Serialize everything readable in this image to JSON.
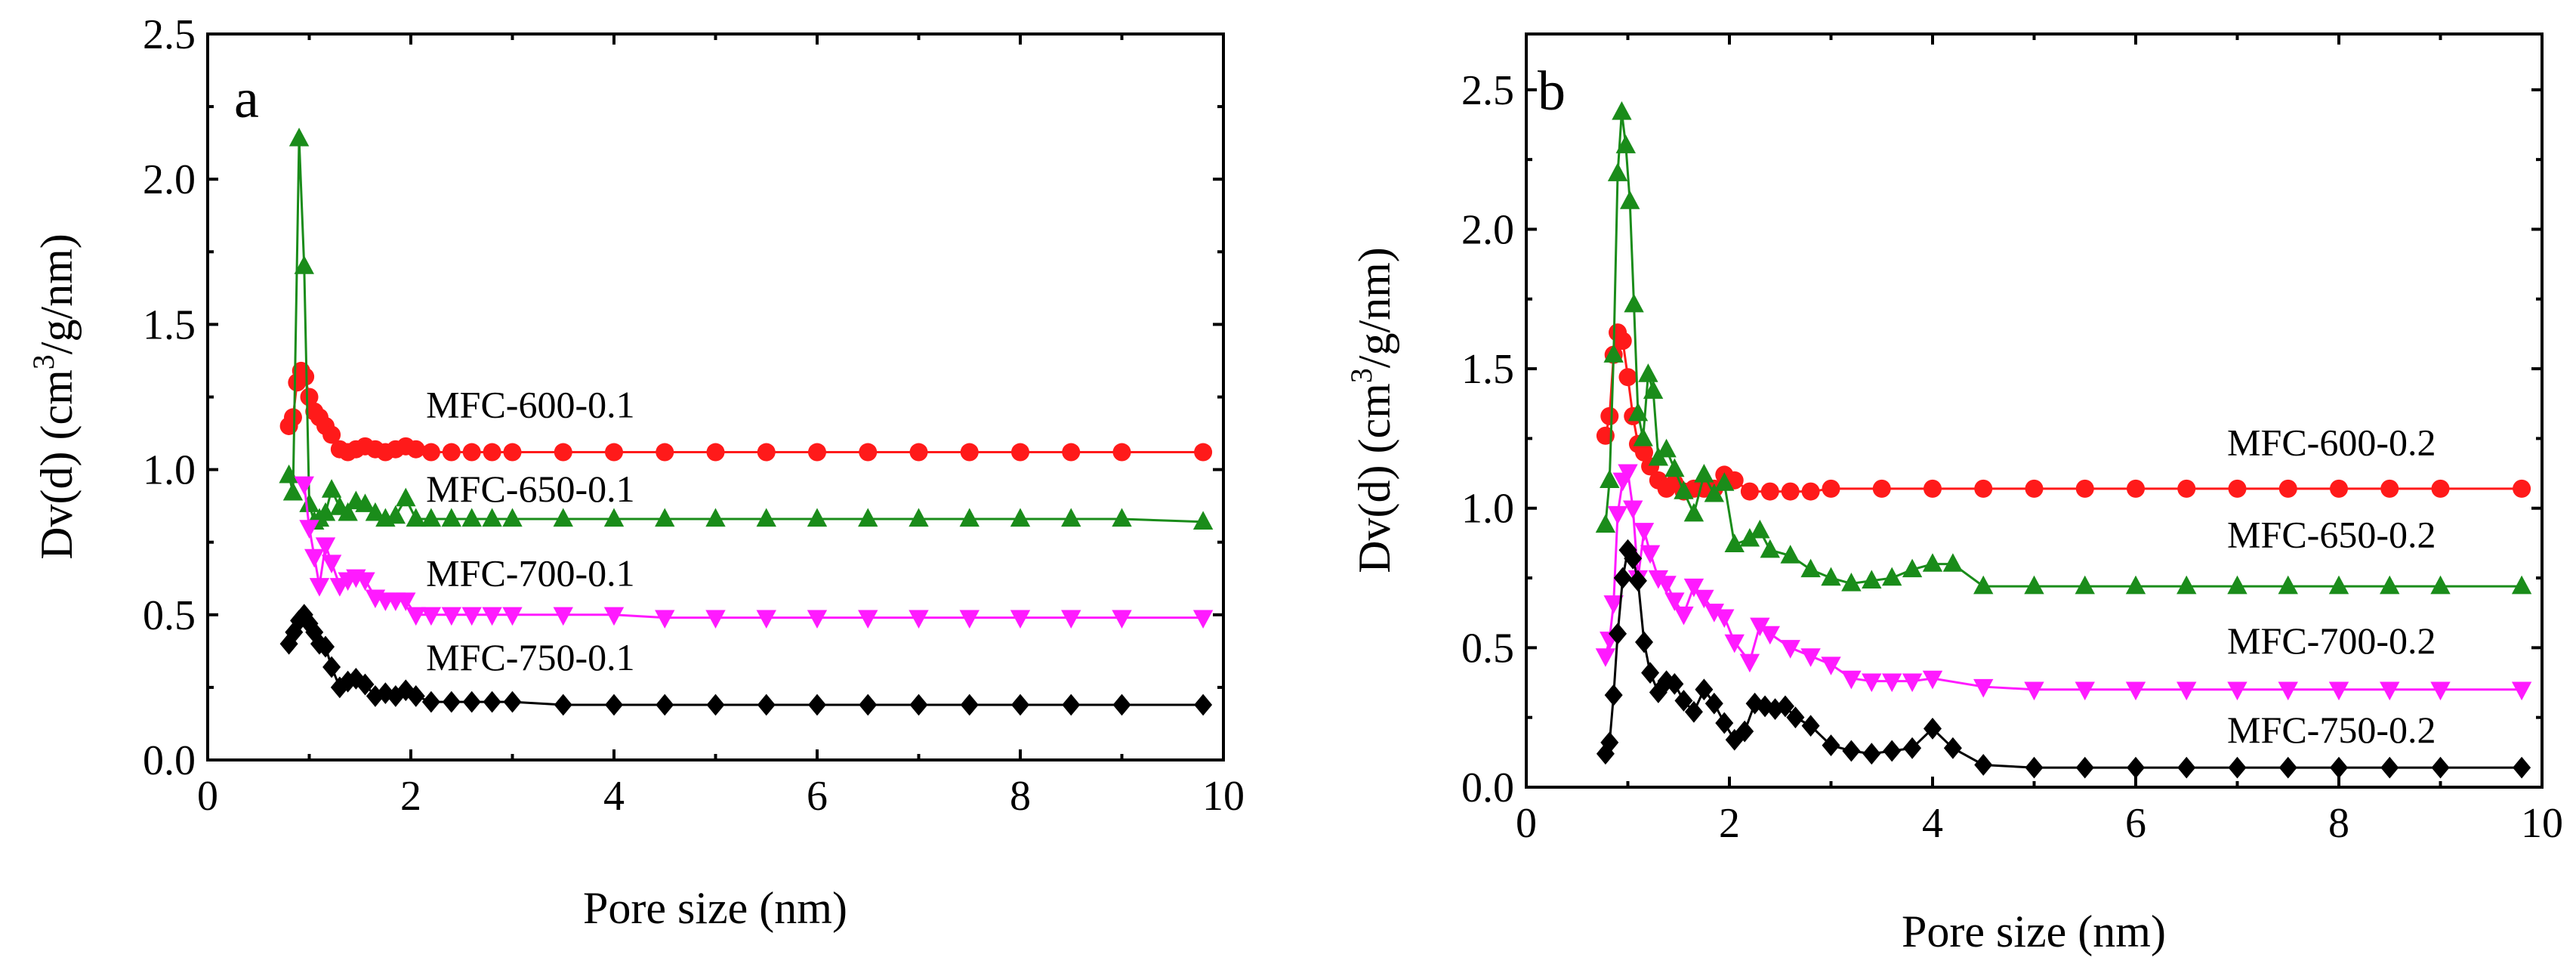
{
  "chart_data": [
    {
      "type": "scatter",
      "panel_label": "a",
      "xlabel": "Pore size (nm)",
      "ylabel": "Dv(d) (cm",
      "ylabel_sup": "3",
      "ylabel_rest": "/g/nm)",
      "xlim": [
        0,
        10
      ],
      "ylim": [
        0,
        2.5
      ],
      "xticks": [
        0,
        2,
        4,
        6,
        8,
        10
      ],
      "xtick_labels": [
        "0",
        "2",
        "4",
        "6",
        "8",
        "10"
      ],
      "yticks": [
        0.0,
        0.5,
        1.0,
        1.5,
        2.0,
        2.5
      ],
      "ytick_labels": [
        "0.0",
        "0.5",
        "1.0",
        "1.5",
        "2.0",
        "2.5"
      ],
      "series": [
        {
          "name": "MFC-600-0.1",
          "color": "#ff1a1a",
          "marker": "circle",
          "label_at": [
            2.15,
            1.18
          ],
          "x": [
            0.8,
            0.84,
            0.88,
            0.92,
            0.96,
            1.0,
            1.05,
            1.1,
            1.16,
            1.22,
            1.3,
            1.38,
            1.46,
            1.55,
            1.65,
            1.75,
            1.85,
            1.95,
            2.05,
            2.2,
            2.4,
            2.6,
            2.8,
            3.0,
            3.5,
            4.0,
            4.5,
            5.0,
            5.5,
            6.0,
            6.5,
            7.0,
            7.5,
            8.0,
            8.5,
            9.0,
            9.8
          ],
          "y": [
            1.15,
            1.18,
            1.3,
            1.34,
            1.32,
            1.25,
            1.2,
            1.18,
            1.15,
            1.12,
            1.07,
            1.06,
            1.07,
            1.08,
            1.07,
            1.06,
            1.07,
            1.08,
            1.07,
            1.06,
            1.06,
            1.06,
            1.06,
            1.06,
            1.06,
            1.06,
            1.06,
            1.06,
            1.06,
            1.06,
            1.06,
            1.06,
            1.06,
            1.06,
            1.06,
            1.06,
            1.06
          ]
        },
        {
          "name": "MFC-650-0.1",
          "color": "#1a8c1a",
          "marker": "triangle-up",
          "label_at": [
            2.15,
            0.89
          ],
          "x": [
            0.8,
            0.84,
            0.9,
            0.95,
            1.0,
            1.05,
            1.1,
            1.16,
            1.22,
            1.3,
            1.38,
            1.46,
            1.55,
            1.65,
            1.75,
            1.85,
            1.95,
            2.05,
            2.2,
            2.4,
            2.6,
            2.8,
            3.0,
            3.5,
            4.0,
            4.5,
            5.0,
            5.5,
            6.0,
            6.5,
            7.0,
            7.5,
            8.0,
            8.5,
            9.0,
            9.8
          ],
          "y": [
            0.98,
            0.92,
            2.14,
            1.7,
            0.88,
            0.82,
            0.83,
            0.85,
            0.93,
            0.87,
            0.85,
            0.89,
            0.88,
            0.85,
            0.83,
            0.84,
            0.9,
            0.83,
            0.83,
            0.83,
            0.83,
            0.83,
            0.83,
            0.83,
            0.83,
            0.83,
            0.83,
            0.83,
            0.83,
            0.83,
            0.83,
            0.83,
            0.83,
            0.83,
            0.83,
            0.82
          ]
        },
        {
          "name": "MFC-700-0.1",
          "color": "#ff1aff",
          "marker": "triangle-down",
          "label_at": [
            2.15,
            0.6
          ],
          "x": [
            0.95,
            1.0,
            1.05,
            1.1,
            1.16,
            1.22,
            1.3,
            1.38,
            1.46,
            1.55,
            1.65,
            1.75,
            1.85,
            1.95,
            2.05,
            2.2,
            2.4,
            2.6,
            2.8,
            3.0,
            3.5,
            4.0,
            4.5,
            5.0,
            5.5,
            6.0,
            6.5,
            7.0,
            7.5,
            8.0,
            8.5,
            9.0,
            9.8
          ],
          "y": [
            0.95,
            0.8,
            0.7,
            0.6,
            0.74,
            0.68,
            0.6,
            0.62,
            0.63,
            0.62,
            0.56,
            0.55,
            0.55,
            0.55,
            0.5,
            0.5,
            0.5,
            0.5,
            0.5,
            0.5,
            0.5,
            0.5,
            0.49,
            0.49,
            0.49,
            0.49,
            0.49,
            0.49,
            0.49,
            0.49,
            0.49,
            0.49,
            0.49
          ]
        },
        {
          "name": "MFC-750-0.1",
          "color": "#000000",
          "marker": "diamond",
          "label_at": [
            2.15,
            0.31
          ],
          "x": [
            0.8,
            0.85,
            0.9,
            0.95,
            1.0,
            1.05,
            1.1,
            1.16,
            1.22,
            1.3,
            1.38,
            1.46,
            1.55,
            1.65,
            1.75,
            1.85,
            1.95,
            2.05,
            2.2,
            2.4,
            2.6,
            2.8,
            3.0,
            3.5,
            4.0,
            4.5,
            5.0,
            5.5,
            6.0,
            6.5,
            7.0,
            7.5,
            8.0,
            8.5,
            9.0,
            9.8
          ],
          "y": [
            0.4,
            0.44,
            0.48,
            0.5,
            0.47,
            0.44,
            0.4,
            0.39,
            0.32,
            0.25,
            0.27,
            0.28,
            0.26,
            0.22,
            0.23,
            0.22,
            0.24,
            0.22,
            0.2,
            0.2,
            0.2,
            0.2,
            0.2,
            0.19,
            0.19,
            0.19,
            0.19,
            0.19,
            0.19,
            0.19,
            0.19,
            0.19,
            0.19,
            0.19,
            0.19,
            0.19
          ]
        }
      ]
    },
    {
      "type": "scatter",
      "panel_label": "b",
      "xlabel": "Pore size (nm)",
      "ylabel": "Dv(d) (cm",
      "ylabel_sup": "3",
      "ylabel_rest": "/g/nm)",
      "xlim": [
        0,
        10
      ],
      "ylim": [
        0,
        2.7
      ],
      "xticks": [
        0,
        2,
        4,
        6,
        8,
        10
      ],
      "xtick_labels": [
        "0",
        "2",
        "4",
        "6",
        "8",
        "10"
      ],
      "yticks": [
        0.0,
        0.5,
        1.0,
        1.5,
        2.0,
        2.5
      ],
      "ytick_labels": [
        "0.0",
        "0.5",
        "1.0",
        "1.5",
        "2.0",
        "2.5"
      ],
      "series": [
        {
          "name": "MFC-600-0.2",
          "color": "#ff1a1a",
          "marker": "circle",
          "label_at": [
            6.9,
            1.19
          ],
          "x": [
            0.78,
            0.82,
            0.86,
            0.9,
            0.95,
            1.0,
            1.05,
            1.1,
            1.16,
            1.22,
            1.3,
            1.38,
            1.46,
            1.55,
            1.65,
            1.75,
            1.85,
            1.95,
            2.05,
            2.2,
            2.4,
            2.6,
            2.8,
            3.0,
            3.5,
            4.0,
            4.5,
            5.0,
            5.5,
            6.0,
            6.5,
            7.0,
            7.5,
            8.0,
            8.5,
            9.0,
            9.8
          ],
          "y": [
            1.26,
            1.33,
            1.55,
            1.63,
            1.6,
            1.47,
            1.33,
            1.23,
            1.2,
            1.15,
            1.1,
            1.07,
            1.09,
            1.06,
            1.07,
            1.07,
            1.07,
            1.12,
            1.1,
            1.06,
            1.06,
            1.06,
            1.06,
            1.07,
            1.07,
            1.07,
            1.07,
            1.07,
            1.07,
            1.07,
            1.07,
            1.07,
            1.07,
            1.07,
            1.07,
            1.07,
            1.07
          ]
        },
        {
          "name": "MFC-650-0.2",
          "color": "#1a8c1a",
          "marker": "triangle-up",
          "label_at": [
            6.9,
            0.86
          ],
          "x": [
            0.78,
            0.82,
            0.86,
            0.9,
            0.94,
            0.98,
            1.02,
            1.06,
            1.1,
            1.15,
            1.2,
            1.25,
            1.3,
            1.38,
            1.46,
            1.55,
            1.65,
            1.75,
            1.85,
            1.95,
            2.05,
            2.2,
            2.3,
            2.4,
            2.6,
            2.8,
            3.0,
            3.2,
            3.4,
            3.6,
            3.8,
            4.0,
            4.2,
            4.5,
            5.0,
            5.5,
            6.0,
            6.5,
            7.0,
            7.5,
            8.0,
            8.5,
            9.0,
            9.8
          ],
          "y": [
            0.94,
            1.1,
            1.55,
            2.2,
            2.42,
            2.3,
            2.1,
            1.73,
            1.34,
            1.25,
            1.48,
            1.42,
            1.18,
            1.21,
            1.14,
            1.06,
            0.98,
            1.12,
            1.05,
            1.09,
            0.87,
            0.89,
            0.92,
            0.85,
            0.83,
            0.78,
            0.75,
            0.73,
            0.74,
            0.75,
            0.78,
            0.8,
            0.8,
            0.72,
            0.72,
            0.72,
            0.72,
            0.72,
            0.72,
            0.72,
            0.72,
            0.72,
            0.72,
            0.72
          ]
        },
        {
          "name": "MFC-700-0.2",
          "color": "#ff1aff",
          "marker": "triangle-down",
          "label_at": [
            6.9,
            0.48
          ],
          "x": [
            0.78,
            0.82,
            0.86,
            0.9,
            0.95,
            1.0,
            1.05,
            1.1,
            1.16,
            1.22,
            1.3,
            1.38,
            1.46,
            1.55,
            1.65,
            1.75,
            1.85,
            1.95,
            2.05,
            2.2,
            2.3,
            2.4,
            2.6,
            2.8,
            3.0,
            3.2,
            3.4,
            3.6,
            3.8,
            4.0,
            4.5,
            5.0,
            5.5,
            6.0,
            6.5,
            7.0,
            7.5,
            8.0,
            8.5,
            9.0,
            9.8
          ],
          "y": [
            0.47,
            0.53,
            0.66,
            0.98,
            1.1,
            1.13,
            1.0,
            0.75,
            0.92,
            0.84,
            0.75,
            0.73,
            0.67,
            0.62,
            0.72,
            0.68,
            0.63,
            0.61,
            0.52,
            0.45,
            0.58,
            0.55,
            0.5,
            0.47,
            0.44,
            0.39,
            0.38,
            0.38,
            0.38,
            0.39,
            0.36,
            0.35,
            0.35,
            0.35,
            0.35,
            0.35,
            0.35,
            0.35,
            0.35,
            0.35,
            0.35
          ]
        },
        {
          "name": "MFC-750-0.2",
          "color": "#000000",
          "marker": "diamond",
          "label_at": [
            6.9,
            0.16
          ],
          "x": [
            0.78,
            0.82,
            0.86,
            0.9,
            0.95,
            1.0,
            1.05,
            1.1,
            1.16,
            1.22,
            1.3,
            1.38,
            1.46,
            1.55,
            1.65,
            1.75,
            1.85,
            1.95,
            2.05,
            2.15,
            2.25,
            2.35,
            2.45,
            2.55,
            2.65,
            2.8,
            3.0,
            3.2,
            3.4,
            3.6,
            3.8,
            4.0,
            4.2,
            4.5,
            5.0,
            5.5,
            6.0,
            6.5,
            7.0,
            7.5,
            8.0,
            8.5,
            9.0,
            9.8
          ],
          "y": [
            0.12,
            0.16,
            0.33,
            0.55,
            0.75,
            0.85,
            0.82,
            0.74,
            0.52,
            0.41,
            0.34,
            0.38,
            0.37,
            0.31,
            0.27,
            0.35,
            0.3,
            0.23,
            0.17,
            0.2,
            0.3,
            0.29,
            0.28,
            0.29,
            0.25,
            0.22,
            0.15,
            0.13,
            0.12,
            0.13,
            0.14,
            0.21,
            0.14,
            0.08,
            0.07,
            0.07,
            0.07,
            0.07,
            0.07,
            0.07,
            0.07,
            0.07,
            0.07,
            0.07
          ]
        }
      ]
    }
  ]
}
